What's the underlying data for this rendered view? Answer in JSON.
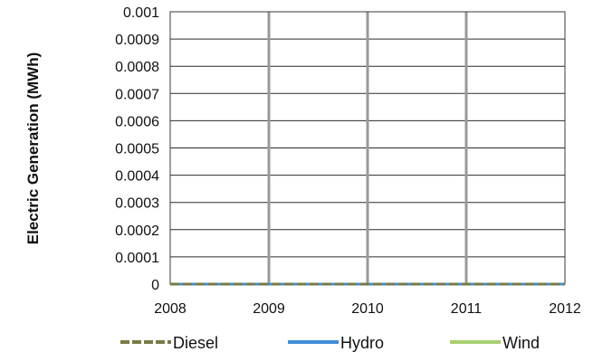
{
  "chart_data": {
    "type": "line",
    "title": "",
    "xlabel": "",
    "ylabel": "Electric Generation (MWh)",
    "x": [
      2008,
      2009,
      2010,
      2011,
      2012
    ],
    "x_tick_labels": [
      "2008",
      "2009",
      "2010",
      "2011",
      "2012"
    ],
    "ylim": [
      0,
      0.001
    ],
    "y_tick_labels": [
      "0",
      "0.0001",
      "0.0002",
      "0.0003",
      "0.0004",
      "0.0005",
      "0.0006",
      "0.0007",
      "0.0008",
      "0.0009",
      "0.001"
    ],
    "grid": true,
    "legend_position": "bottom",
    "series": [
      {
        "name": "Diesel",
        "values": [
          0,
          0,
          0,
          0,
          0
        ],
        "color": "#7a7a45",
        "style": "dashed"
      },
      {
        "name": "Hydro",
        "values": [
          0,
          0,
          0,
          0,
          0
        ],
        "color": "#3f8fd8",
        "style": "solid"
      },
      {
        "name": "Wind",
        "values": [
          0,
          0,
          0,
          0,
          0
        ],
        "color": "#a8d070",
        "style": "solid"
      }
    ]
  }
}
